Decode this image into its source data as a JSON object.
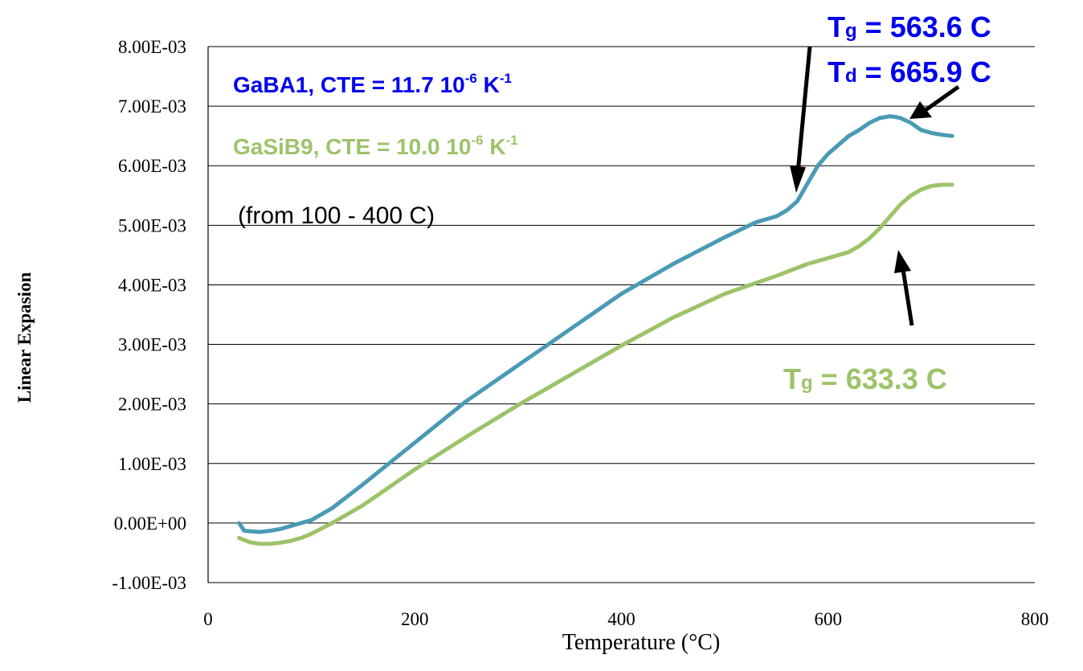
{
  "chart_data": {
    "type": "line",
    "xlabel": "Temperature (°C)",
    "ylabel": "Linear Expasion",
    "xlim": [
      0,
      800
    ],
    "ylim": [
      -0.001,
      0.008
    ],
    "xticks": [
      0,
      200,
      400,
      600,
      800
    ],
    "xtick_labels": [
      "0",
      "200",
      "400",
      "600",
      "800"
    ],
    "yticks": [
      -0.001,
      0,
      0.001,
      0.002,
      0.003,
      0.004,
      0.005,
      0.006,
      0.007,
      0.008
    ],
    "ytick_labels": [
      "-1.00E-03",
      "0.00E+00",
      "1.00E-03",
      "2.00E-03",
      "3.00E-03",
      "4.00E-03",
      "5.00E-03",
      "6.00E-03",
      "7.00E-03",
      "8.00E-03"
    ],
    "grid": "horizontal",
    "series": [
      {
        "color": "#4a9ab5",
        "x": [
          30,
          35,
          50,
          60,
          70,
          80,
          90,
          100,
          120,
          150,
          200,
          250,
          300,
          350,
          400,
          450,
          500,
          530,
          550,
          560,
          570,
          580,
          590,
          600,
          610,
          620,
          630,
          640,
          650,
          660,
          665,
          670,
          680,
          690,
          700,
          710,
          720
        ],
        "y": [
          0.0,
          -0.00013,
          -0.00015,
          -0.00013,
          -0.0001,
          -5e-05,
          0.0,
          5e-05,
          0.00025,
          0.00065,
          0.00135,
          0.00205,
          0.00265,
          0.00325,
          0.00385,
          0.00435,
          0.0048,
          0.00505,
          0.00515,
          0.00525,
          0.0054,
          0.0057,
          0.006,
          0.0062,
          0.00635,
          0.0065,
          0.0066,
          0.00672,
          0.0068,
          0.00683,
          0.00682,
          0.0068,
          0.00672,
          0.0066,
          0.00655,
          0.00652,
          0.0065
        ]
      },
      {
        "color": "#9dc36a",
        "x": [
          30,
          40,
          50,
          60,
          70,
          80,
          90,
          100,
          120,
          150,
          200,
          250,
          300,
          350,
          400,
          450,
          500,
          550,
          580,
          600,
          620,
          630,
          640,
          650,
          660,
          670,
          680,
          690,
          700,
          710,
          720
        ],
        "y": [
          -0.00025,
          -0.00032,
          -0.00035,
          -0.00035,
          -0.00033,
          -0.0003,
          -0.00025,
          -0.00018,
          0.0,
          0.0003,
          0.0009,
          0.00145,
          0.00198,
          0.00248,
          0.00298,
          0.00345,
          0.00385,
          0.00415,
          0.00435,
          0.00445,
          0.00455,
          0.00465,
          0.00478,
          0.00495,
          0.00515,
          0.00535,
          0.0055,
          0.0056,
          0.00566,
          0.00568,
          0.00568
        ]
      }
    ]
  },
  "annotations": {
    "gaba1_cte": {
      "text": "GaBA1, CTE = 11.7 10",
      "sup1": "-6",
      "mid": " K",
      "sup2": "-1",
      "color": "#0000ee"
    },
    "gasib9_cte": {
      "text": "GaSiB9, CTE = 10.0 10",
      "sup1": "-6",
      "mid": " K",
      "sup2": "-1",
      "color": "#9dc36a"
    },
    "range_note": "(from 100 - 400  C)",
    "tg1": {
      "T": "T",
      "sub": "g",
      "rest": " = 563.6  C",
      "color": "#0000ee"
    },
    "td1": {
      "T": "T",
      "sub": "d",
      "rest": " = 665.9  C",
      "color": "#0000ee"
    },
    "tg2": {
      "T": "T",
      "sub": "g",
      "rest": " = 633.3  C",
      "color": "#9dc36a"
    }
  }
}
